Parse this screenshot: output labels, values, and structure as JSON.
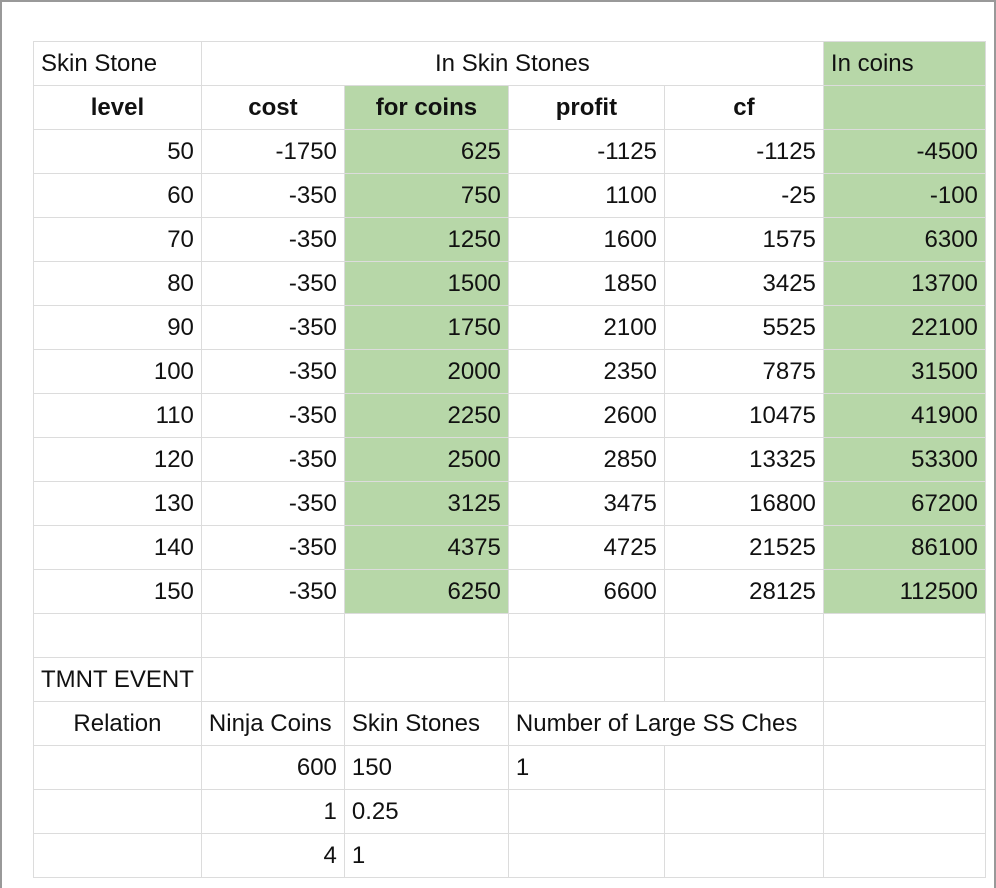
{
  "header": {
    "skin_stone_label": "Skin Stone",
    "in_skin_stones_label": "In Skin Stones",
    "in_coins_label": "In coins"
  },
  "columns": [
    "level",
    "cost",
    "for coins",
    "profit",
    "cf"
  ],
  "rows": [
    [
      "50",
      "-1750",
      "625",
      "-1125",
      "-1125",
      "-4500"
    ],
    [
      "60",
      "-350",
      "750",
      "1100",
      "-25",
      "-100"
    ],
    [
      "70",
      "-350",
      "1250",
      "1600",
      "1575",
      "6300"
    ],
    [
      "80",
      "-350",
      "1500",
      "1850",
      "3425",
      "13700"
    ],
    [
      "90",
      "-350",
      "1750",
      "2100",
      "5525",
      "22100"
    ],
    [
      "100",
      "-350",
      "2000",
      "2350",
      "7875",
      "31500"
    ],
    [
      "110",
      "-350",
      "2250",
      "2600",
      "10475",
      "41900"
    ],
    [
      "120",
      "-350",
      "2500",
      "2850",
      "13325",
      "53300"
    ],
    [
      "130",
      "-350",
      "3125",
      "3475",
      "16800",
      "67200"
    ],
    [
      "140",
      "-350",
      "4375",
      "4725",
      "21525",
      "86100"
    ],
    [
      "150",
      "-350",
      "6250",
      "6600",
      "28125",
      "112500"
    ]
  ],
  "event": {
    "title": "TMNT EVENT",
    "headers": [
      "Relation",
      "Ninja Coins",
      "Skin Stones",
      "Number of Large SS Ches"
    ],
    "rows": [
      [
        "600",
        "150",
        "1"
      ],
      [
        "1",
        "0.25",
        ""
      ],
      [
        "4",
        "1",
        ""
      ]
    ]
  },
  "colors": {
    "highlight": "#b7d7a8",
    "gridline": "#dcdcdc"
  }
}
